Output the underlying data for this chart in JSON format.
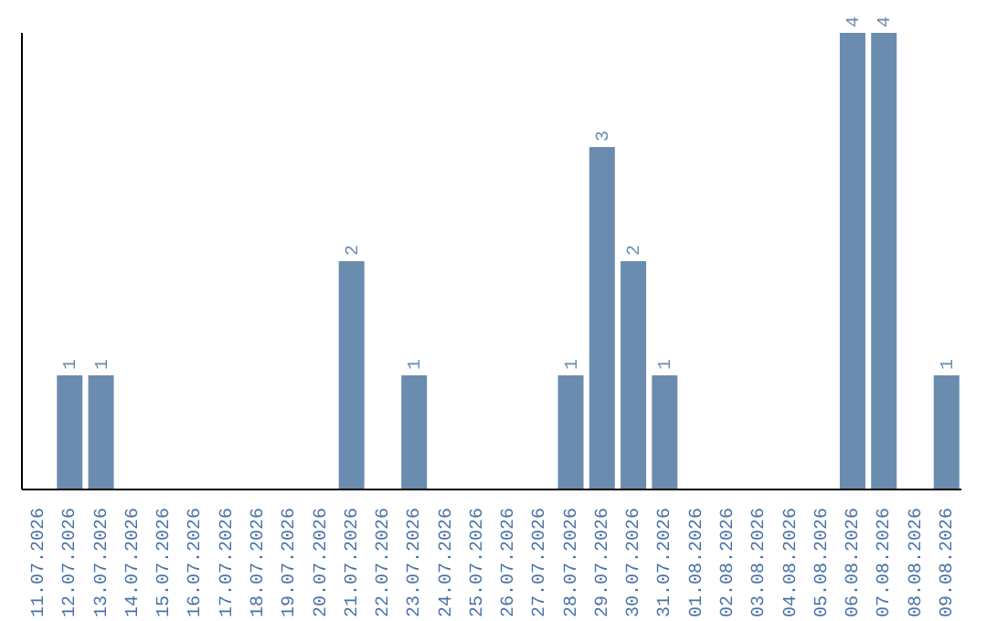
{
  "chart_data": {
    "type": "bar",
    "categories": [
      "11.07.2026",
      "12.07.2026",
      "13.07.2026",
      "14.07.2026",
      "15.07.2026",
      "16.07.2026",
      "17.07.2026",
      "18.07.2026",
      "19.07.2026",
      "20.07.2026",
      "21.07.2026",
      "22.07.2026",
      "23.07.2026",
      "24.07.2026",
      "25.07.2026",
      "26.07.2026",
      "27.07.2026",
      "28.07.2026",
      "29.07.2026",
      "30.07.2026",
      "31.07.2026",
      "01.08.2026",
      "02.08.2026",
      "03.08.2026",
      "04.08.2026",
      "05.08.2026",
      "06.08.2026",
      "07.08.2026",
      "08.08.2026",
      "09.08.2026"
    ],
    "values": [
      0,
      1,
      1,
      0,
      0,
      0,
      0,
      0,
      0,
      0,
      2,
      0,
      1,
      0,
      0,
      0,
      0,
      1,
      3,
      2,
      1,
      0,
      0,
      0,
      0,
      0,
      4,
      4,
      0,
      1
    ],
    "value_labels": [
      null,
      "1",
      "1",
      null,
      null,
      null,
      null,
      null,
      null,
      null,
      "2",
      null,
      "1",
      null,
      null,
      null,
      null,
      "1",
      "3",
      "2",
      "1",
      null,
      null,
      null,
      null,
      null,
      "4",
      "4",
      null,
      "1"
    ],
    "color": "#6a8caf",
    "tick_labels": "x"
  }
}
